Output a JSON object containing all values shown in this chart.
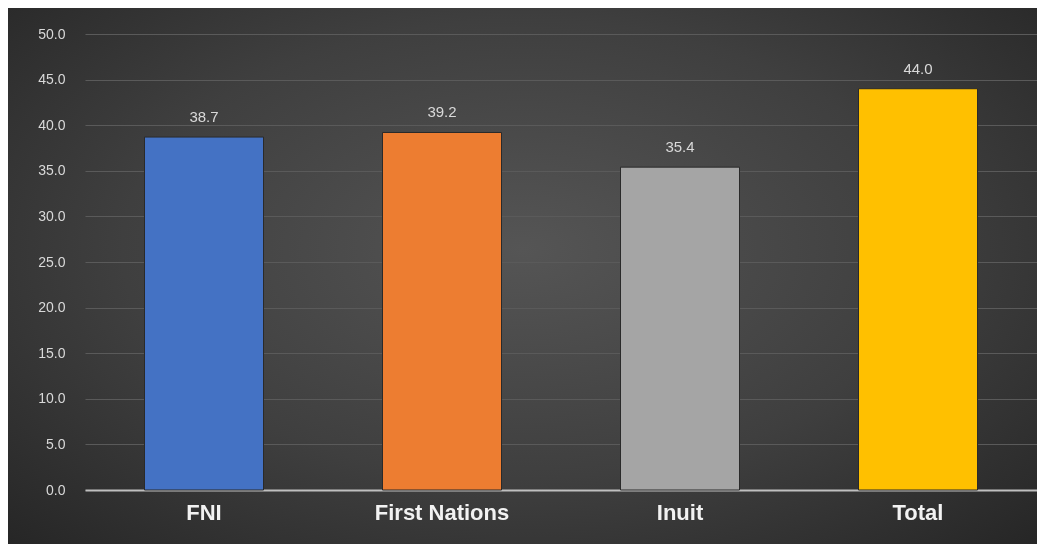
{
  "chart_data": {
    "type": "bar",
    "categories": [
      "FNI",
      "First Nations",
      "Inuit",
      "Total"
    ],
    "values": [
      38.7,
      39.2,
      35.4,
      44.0
    ],
    "value_labels": [
      "38.7",
      "39.2",
      "35.4",
      "44.0"
    ],
    "colors": [
      "#4472c4",
      "#ed7d31",
      "#a5a5a5",
      "#ffc000"
    ],
    "ylim": [
      0,
      50
    ],
    "yticks": [
      {
        "value": 0,
        "label": "0.0"
      },
      {
        "value": 5,
        "label": "5.0"
      },
      {
        "value": 10,
        "label": "10.0"
      },
      {
        "value": 15,
        "label": "15.0"
      },
      {
        "value": 20,
        "label": "20.0"
      },
      {
        "value": 25,
        "label": "25.0"
      },
      {
        "value": 30,
        "label": "30.0"
      },
      {
        "value": 35,
        "label": "35.0"
      },
      {
        "value": 40,
        "label": "40.0"
      },
      {
        "value": 45,
        "label": "45.0"
      },
      {
        "value": 50,
        "label": "50.0"
      }
    ],
    "grid": "y"
  }
}
